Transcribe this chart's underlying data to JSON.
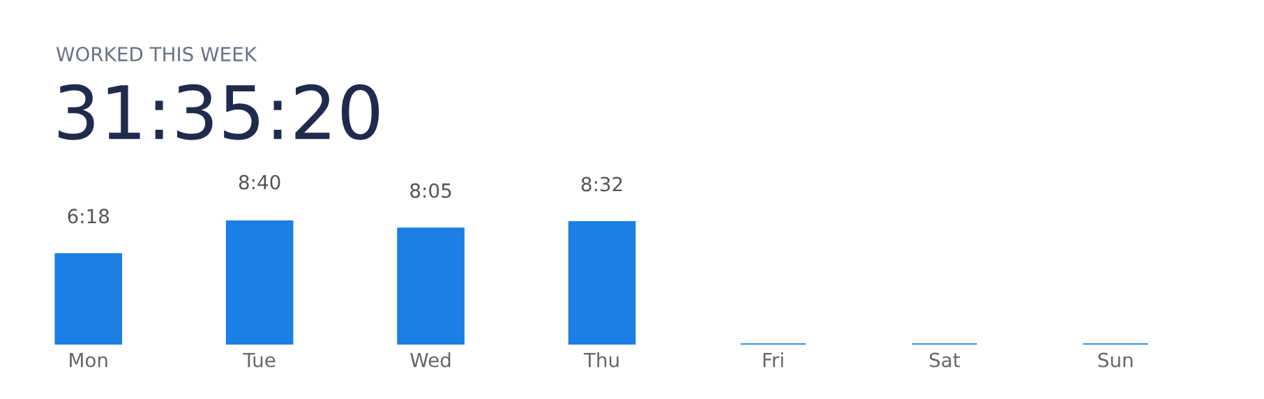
{
  "chart_data": {
    "type": "bar",
    "title": "WORKED THIS WEEK",
    "subtitle": "31:35:20",
    "categories": [
      "Mon",
      "Tue",
      "Wed",
      "Thu",
      "Fri",
      "Sat",
      "Sun"
    ],
    "values": [
      6.3,
      8.667,
      8.083,
      8.533,
      0,
      0,
      0
    ],
    "value_labels": [
      "6:18",
      "8:40",
      "8:05",
      "8:32",
      null,
      null,
      null
    ],
    "color": "#1c7fe3",
    "grid": false,
    "legend": false
  }
}
